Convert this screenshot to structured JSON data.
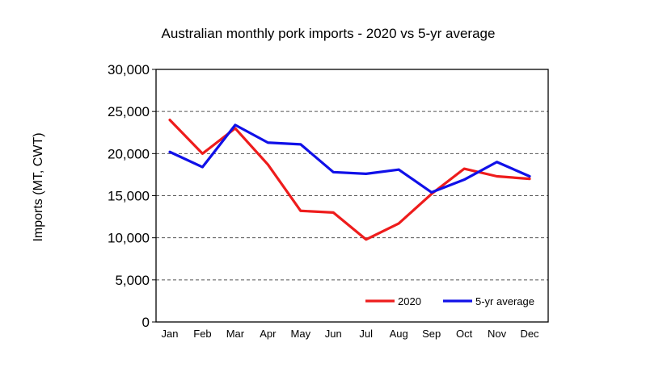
{
  "chart_data": {
    "type": "line",
    "title": "Australian monthly pork imports - 2020 vs 5-yr average",
    "xlabel": "",
    "ylabel": "Imports (MT, CWT)",
    "categories": [
      "Jan",
      "Feb",
      "Mar",
      "Apr",
      "May",
      "Jun",
      "Jul",
      "Aug",
      "Sep",
      "Oct",
      "Nov",
      "Dec"
    ],
    "series": [
      {
        "name": "2020",
        "color": "#ee1c1c",
        "values": [
          24000,
          20000,
          23000,
          18700,
          13200,
          13000,
          9800,
          11700,
          15200,
          18200,
          17300,
          17000
        ]
      },
      {
        "name": "5-yr average",
        "color": "#1010e8",
        "values": [
          20200,
          18400,
          23400,
          21300,
          21100,
          17800,
          17600,
          18100,
          15400,
          16900,
          19000,
          17300
        ]
      }
    ],
    "ylim": [
      0,
      30000
    ],
    "yticks": [
      0,
      5000,
      10000,
      15000,
      20000,
      25000,
      30000
    ],
    "ytick_labels": [
      "0",
      "5,000",
      "10,000",
      "15,000",
      "20,000",
      "25,000",
      "30,000"
    ],
    "grid": "horizontal-dashed",
    "legend_position": "bottom-right"
  }
}
